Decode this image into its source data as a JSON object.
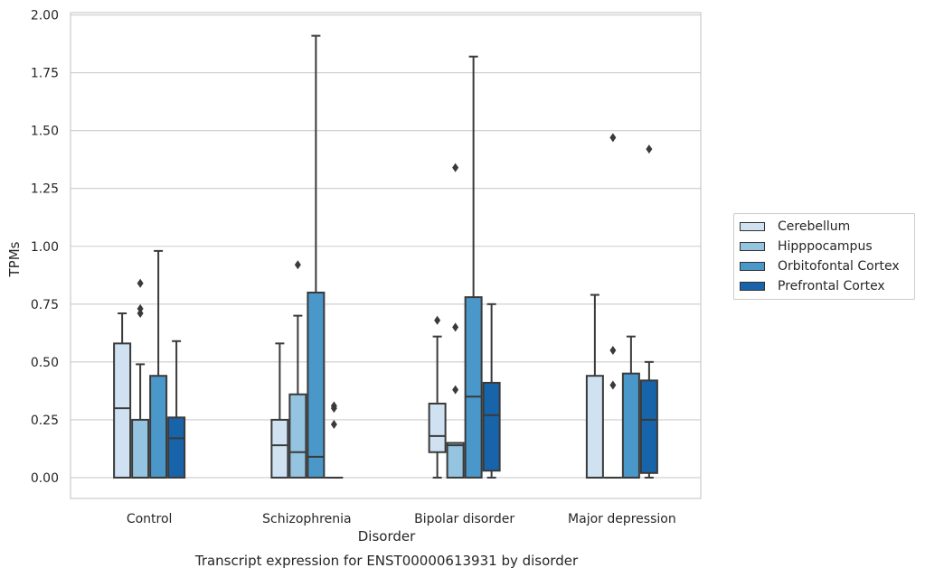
{
  "chart_data": {
    "type": "boxplot",
    "xlabel": "Disorder",
    "ylabel": "TPMs",
    "caption": "Transcript expression for ENST00000613931 by disorder",
    "ylim": [
      -0.09,
      2.01
    ],
    "yticks": [
      "0.00",
      "0.25",
      "0.50",
      "0.75",
      "1.00",
      "1.25",
      "1.50",
      "1.75",
      "2.00"
    ],
    "grid": true,
    "legend_position": "right",
    "categories": [
      "Control",
      "Schizophrenia",
      "Bipolar disorder",
      "Major depression"
    ],
    "series": [
      {
        "name": "Cerebellum",
        "color": "#d0e1f2",
        "boxes": [
          {
            "q1": 0,
            "median": 0.3,
            "q3": 0.58,
            "whisker_low": 0,
            "whisker_high": 0.71,
            "outliers": []
          },
          {
            "q1": 0,
            "median": 0.14,
            "q3": 0.25,
            "whisker_low": 0,
            "whisker_high": 0.58,
            "outliers": []
          },
          {
            "q1": 0.11,
            "median": 0.18,
            "q3": 0.32,
            "whisker_low": 0,
            "whisker_high": 0.61,
            "outliers": [
              0.68
            ]
          },
          {
            "q1": 0,
            "median": 0,
            "q3": 0.44,
            "whisker_low": 0,
            "whisker_high": 0.79,
            "outliers": []
          }
        ]
      },
      {
        "name": "Hipppocampus",
        "color": "#94c4df",
        "boxes": [
          {
            "q1": 0,
            "median": 0,
            "q3": 0.25,
            "whisker_low": 0,
            "whisker_high": 0.49,
            "outliers": [
              0.71,
              0.73,
              0.84
            ]
          },
          {
            "q1": 0,
            "median": 0.11,
            "q3": 0.36,
            "whisker_low": 0,
            "whisker_high": 0.7,
            "outliers": [
              0.92
            ]
          },
          {
            "q1": 0,
            "median": 0.14,
            "q3": 0.15,
            "whisker_low": 0,
            "whisker_high": 0.15,
            "outliers": [
              0.38,
              0.65,
              1.34
            ]
          },
          {
            "q1": 0,
            "median": 0,
            "q3": 0,
            "whisker_low": 0,
            "whisker_high": 0,
            "outliers": [
              0.4,
              0.55,
              1.47
            ]
          }
        ]
      },
      {
        "name": "Orbitofontal Cortex",
        "color": "#4a98c9",
        "boxes": [
          {
            "q1": 0,
            "median": 0,
            "q3": 0.44,
            "whisker_low": 0,
            "whisker_high": 0.98,
            "outliers": []
          },
          {
            "q1": 0,
            "median": 0.09,
            "q3": 0.8,
            "whisker_low": 0,
            "whisker_high": 1.91,
            "outliers": []
          },
          {
            "q1": 0,
            "median": 0.35,
            "q3": 0.78,
            "whisker_low": 0,
            "whisker_high": 1.82,
            "outliers": []
          },
          {
            "q1": 0,
            "median": 0,
            "q3": 0.45,
            "whisker_low": 0,
            "whisker_high": 0.61,
            "outliers": []
          }
        ]
      },
      {
        "name": "Prefrontal Cortex",
        "color": "#1764ab",
        "boxes": [
          {
            "q1": 0,
            "median": 0.17,
            "q3": 0.26,
            "whisker_low": 0,
            "whisker_high": 0.59,
            "outliers": []
          },
          {
            "q1": 0,
            "median": 0,
            "q3": 0,
            "whisker_low": 0,
            "whisker_high": 0,
            "outliers": [
              0.23,
              0.3,
              0.31
            ]
          },
          {
            "q1": 0.03,
            "median": 0.27,
            "q3": 0.41,
            "whisker_low": 0,
            "whisker_high": 0.75,
            "outliers": []
          },
          {
            "q1": 0.02,
            "median": 0.25,
            "q3": 0.42,
            "whisker_low": 0,
            "whisker_high": 0.5,
            "outliers": [
              1.42
            ]
          }
        ]
      }
    ]
  }
}
